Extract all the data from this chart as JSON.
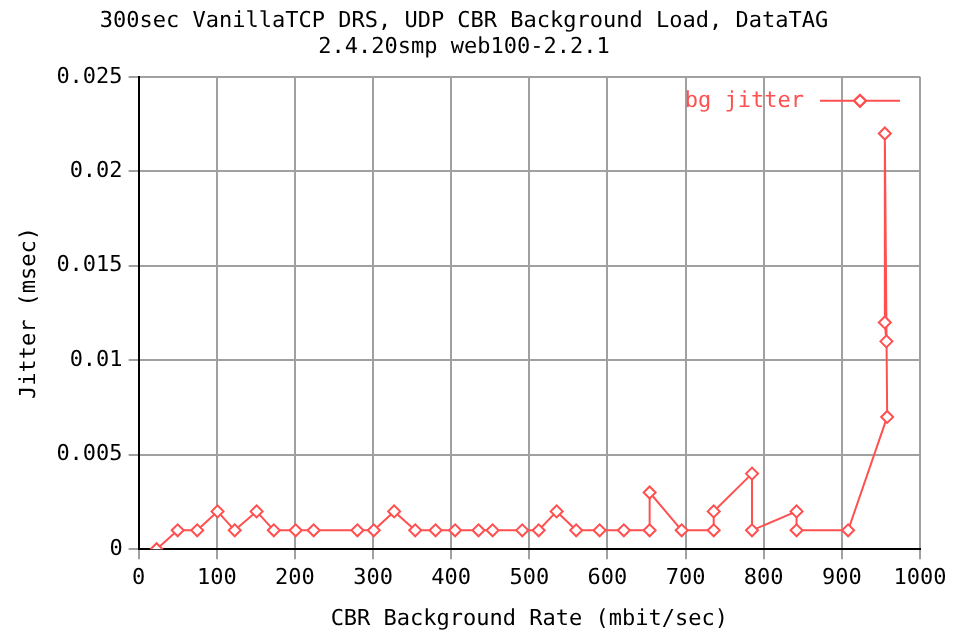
{
  "chart_data": {
    "type": "line",
    "title": "300sec VanillaTCP DRS, UDP CBR Background Load, DataTAG",
    "subtitle": "2.4.20smp web100-2.2.1",
    "xlabel": "CBR Background Rate (mbit/sec)",
    "ylabel": "Jitter (msec)",
    "x": [
      23,
      50,
      75,
      101,
      123,
      151,
      173,
      201,
      224,
      280,
      301,
      327,
      354,
      380,
      405,
      435,
      453,
      491,
      512,
      535,
      560,
      590,
      621,
      654,
      654,
      695,
      736,
      736,
      785,
      785,
      842,
      842,
      908,
      958,
      955,
      955,
      957
    ],
    "series": [
      {
        "name": "bg jitter",
        "color": "#ff5050",
        "values": [
          0,
          0.001,
          0.001,
          0.002,
          0.001,
          0.002,
          0.001,
          0.001,
          0.001,
          0.001,
          0.001,
          0.002,
          0.001,
          0.001,
          0.001,
          0.001,
          0.001,
          0.001,
          0.001,
          0.002,
          0.001,
          0.001,
          0.001,
          0.001,
          0.003,
          0.001,
          0.001,
          0.002,
          0.004,
          0.001,
          0.002,
          0.001,
          0.001,
          0.007,
          0.022,
          0.012,
          0.011
        ]
      }
    ],
    "xlim": [
      0,
      1000
    ],
    "xticks": [
      0,
      100,
      200,
      300,
      400,
      500,
      600,
      700,
      800,
      900,
      1000
    ],
    "ylim": [
      0,
      0.025
    ],
    "yticks": [
      0,
      0.005,
      0.01,
      0.015,
      0.02,
      0.025
    ],
    "grid": true,
    "legend": "top right",
    "marker": "diamond",
    "line_style": "solid"
  }
}
